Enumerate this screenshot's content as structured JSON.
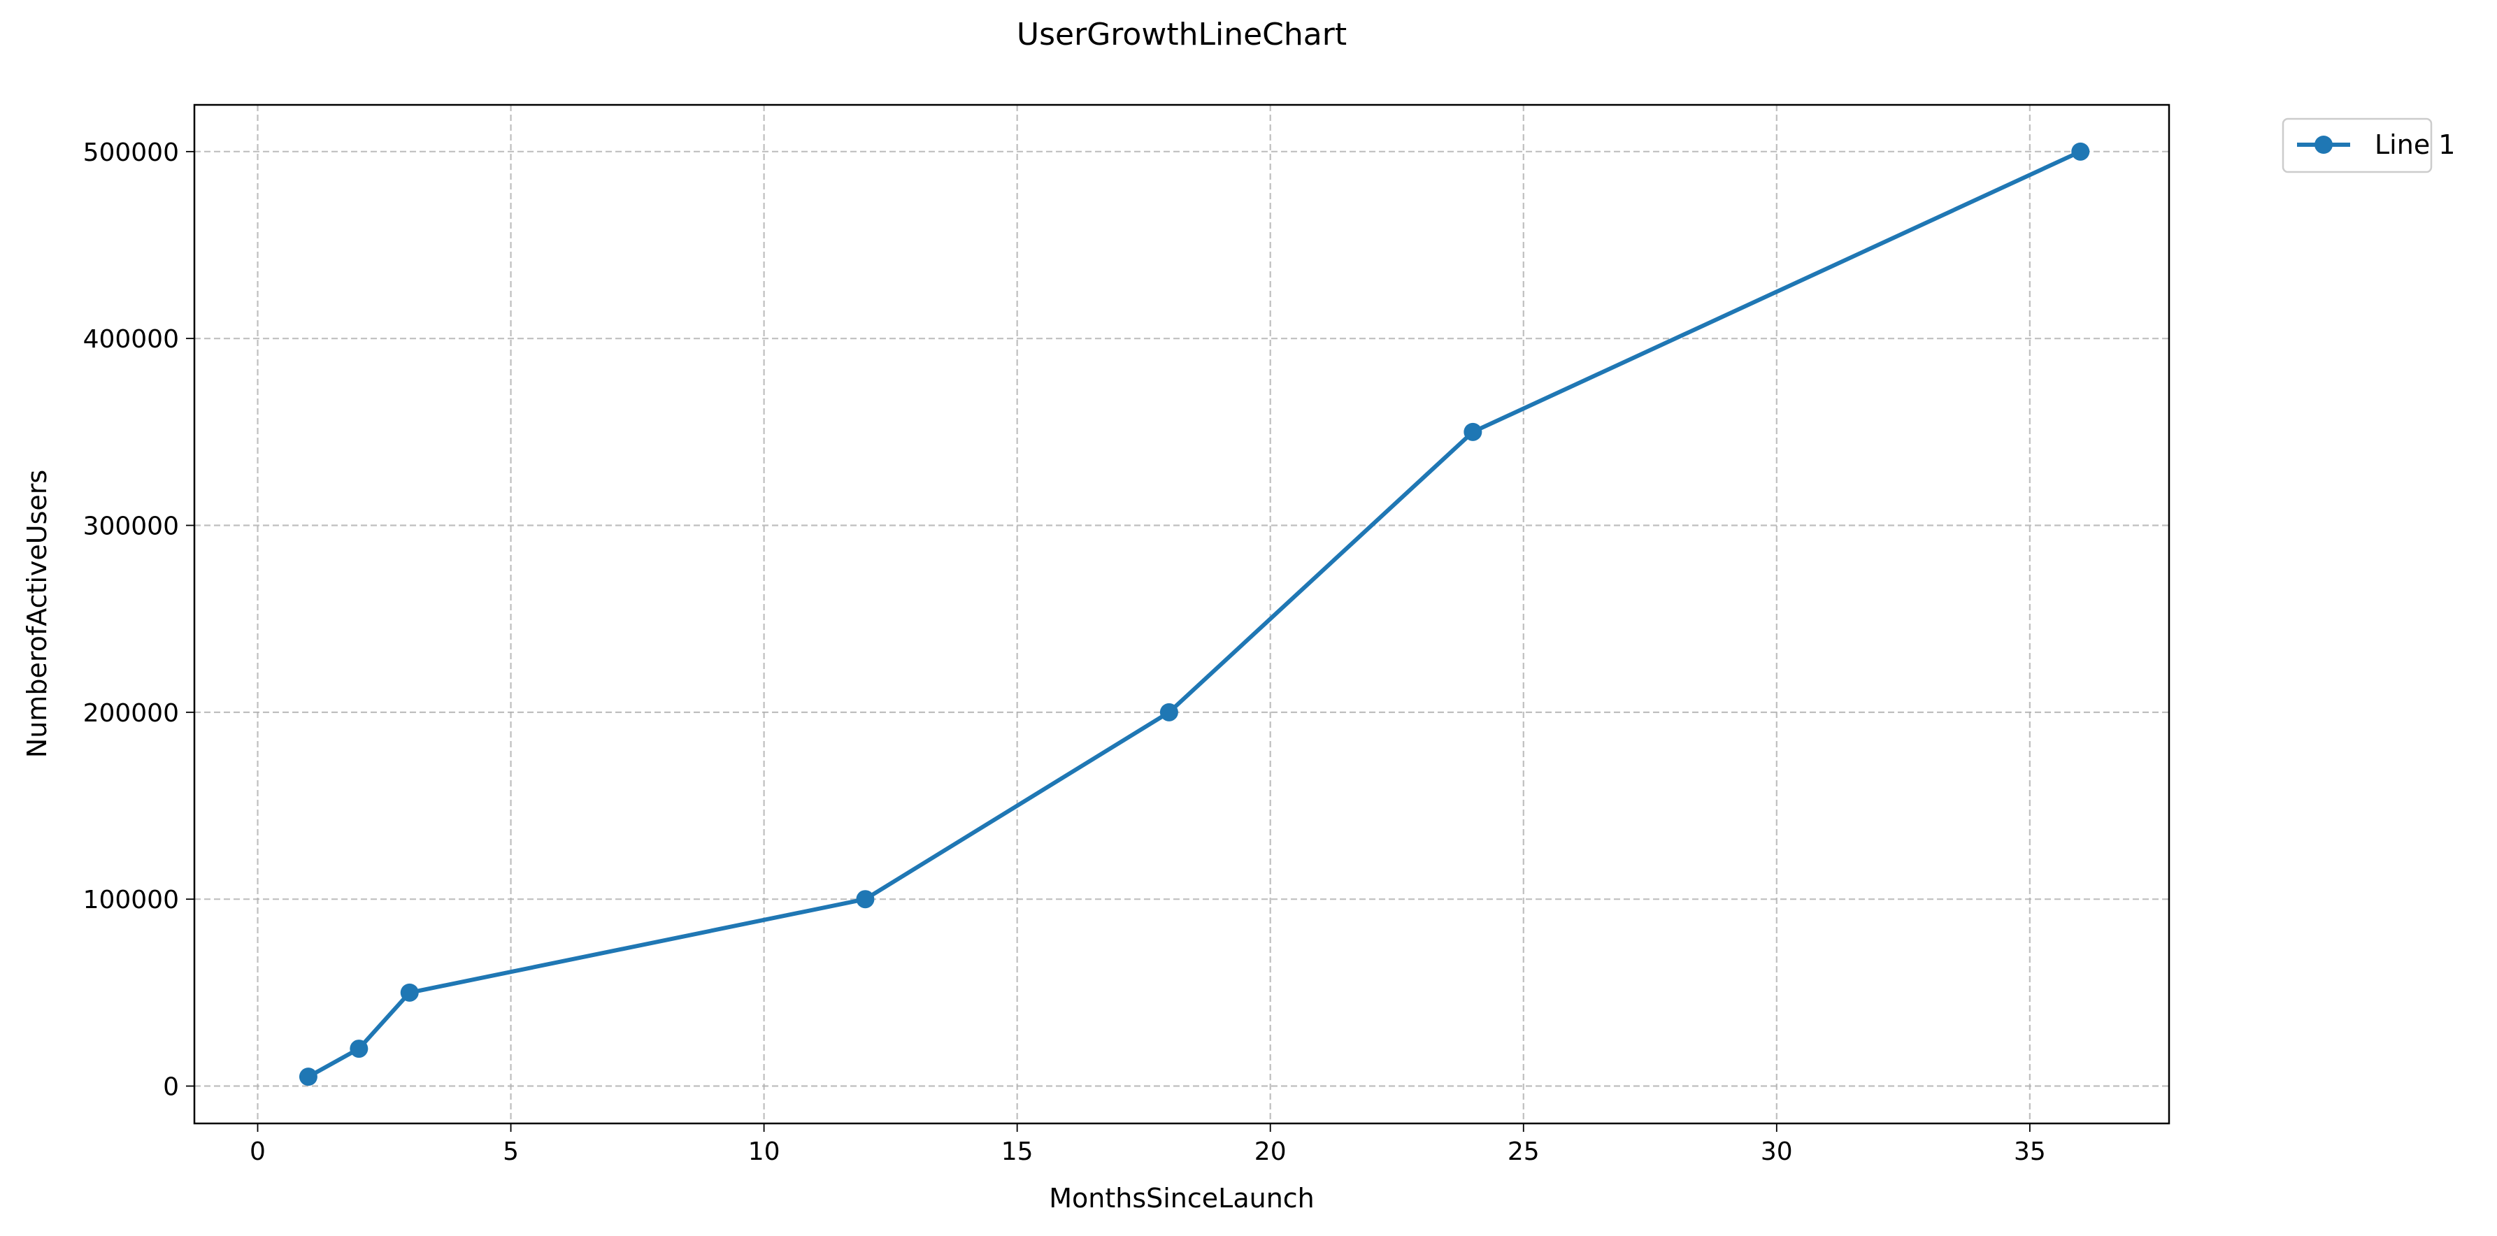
{
  "chart_data": {
    "type": "line",
    "title": "UserGrowthLineChart",
    "xlabel": "MonthsSinceLaunch",
    "ylabel": "NumberofActiveUsers",
    "xlim": [
      -1.25,
      37.75
    ],
    "ylim": [
      -20000,
      525000
    ],
    "xticks": [
      0,
      5,
      10,
      15,
      20,
      25,
      30,
      35
    ],
    "yticks": [
      0,
      100000,
      200000,
      300000,
      400000,
      500000
    ],
    "grid": true,
    "legend_position": "upper-right-outside",
    "series": [
      {
        "name": "Line 1",
        "color": "#1f77b4",
        "marker": "circle",
        "x": [
          1,
          2,
          3,
          12,
          18,
          24,
          36
        ],
        "y": [
          5000,
          20000,
          50000,
          100000,
          200000,
          350000,
          500000
        ]
      }
    ]
  }
}
